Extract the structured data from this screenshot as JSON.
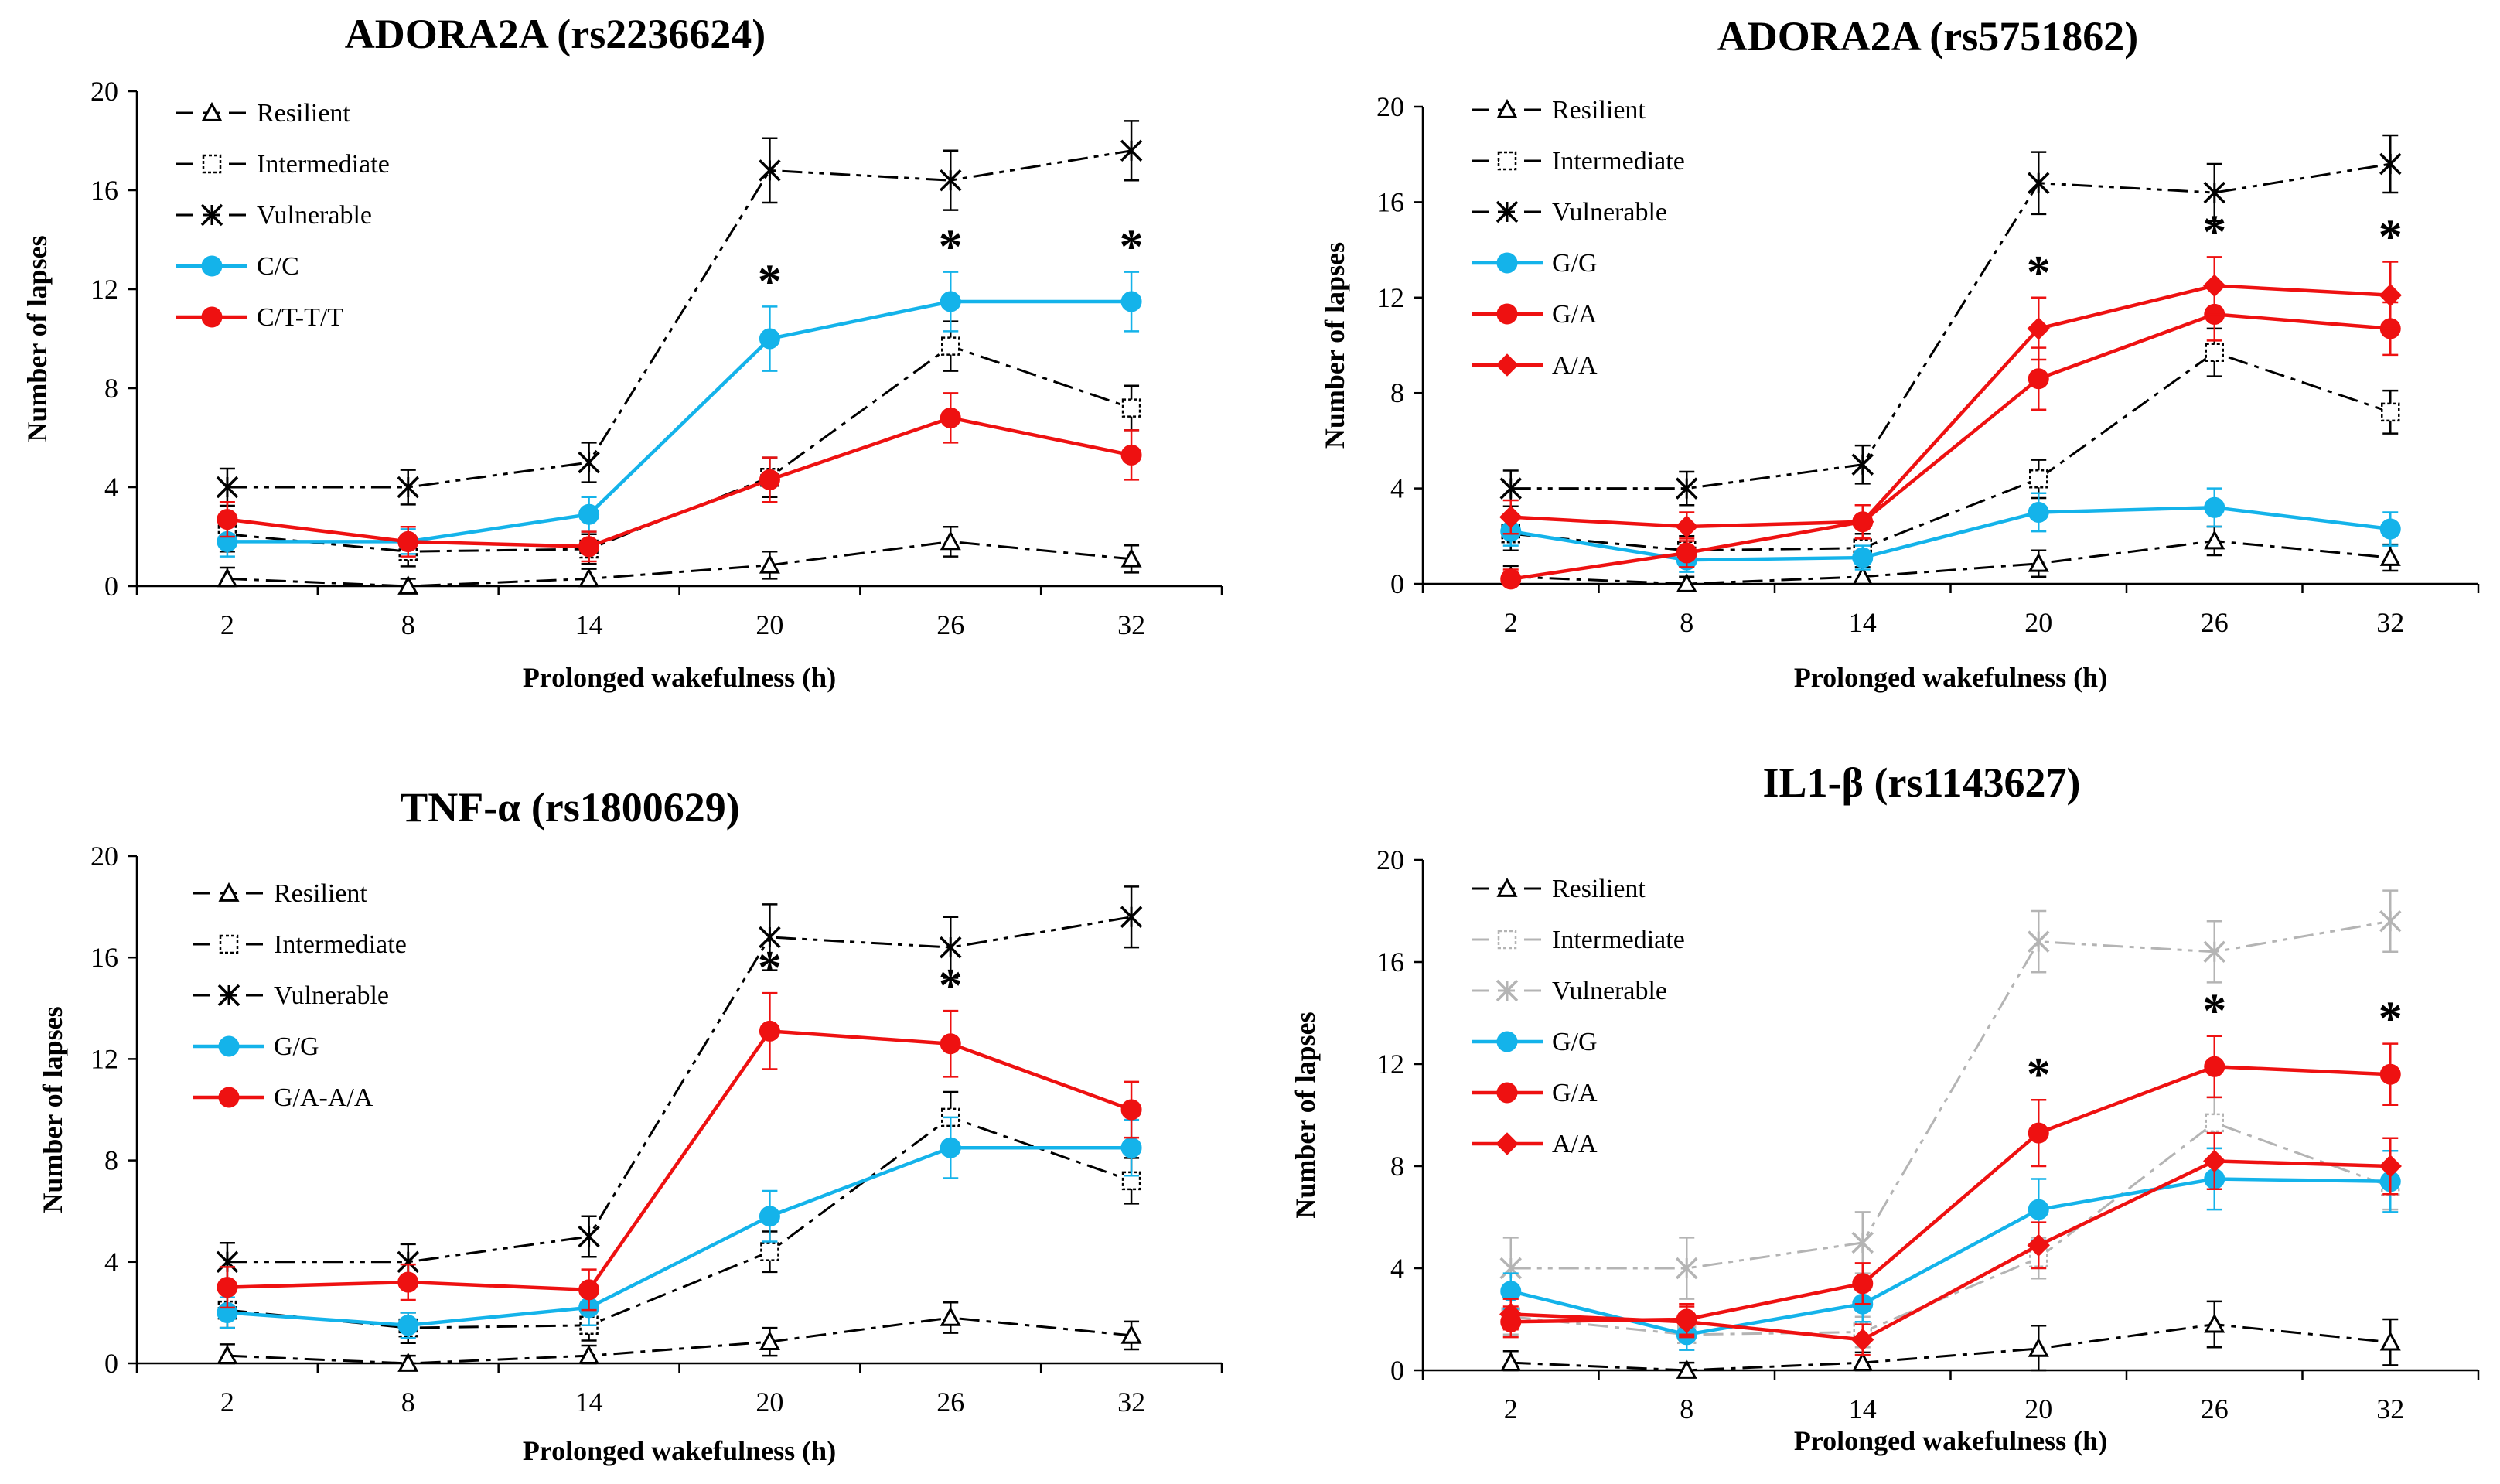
{
  "chart_data": [
    {
      "type": "line",
      "title": "ADORA2A (rs2236624)",
      "xlabel": "Prolonged wakefulness (h)",
      "ylabel": "Number of lapses",
      "categories": [
        "2",
        "8",
        "14",
        "20",
        "26",
        "32"
      ],
      "yticks": [
        "0",
        "4",
        "8",
        "12",
        "16",
        "20"
      ],
      "ylim": [
        0,
        20
      ],
      "significance": [
        null,
        null,
        null,
        "*",
        "*",
        "*"
      ],
      "series": [
        {
          "name": "Resilient",
          "color": "#000000",
          "dash": "dashdot",
          "marker": "triangle",
          "values": [
            0.3,
            0.0,
            0.3,
            0.85,
            1.8,
            1.1
          ],
          "err": [
            0.45,
            0.3,
            0.4,
            0.55,
            0.6,
            0.55
          ]
        },
        {
          "name": "Intermediate",
          "color": "#000000",
          "dash": "dashdot",
          "marker": "square",
          "values": [
            2.1,
            1.4,
            1.5,
            4.4,
            9.7,
            7.2
          ],
          "err": [
            0.7,
            0.6,
            0.6,
            0.8,
            1.0,
            0.9
          ]
        },
        {
          "name": "Vulnerable",
          "color": "#000000",
          "dash": "dashdotdot",
          "marker": "star",
          "values": [
            4.0,
            4.0,
            5.0,
            16.8,
            16.4,
            17.6
          ],
          "err": [
            0.75,
            0.7,
            0.8,
            1.3,
            1.2,
            1.2
          ]
        },
        {
          "name": "C/C",
          "color": "#14b3ea",
          "dash": "solid",
          "marker": "circle",
          "values": [
            1.8,
            1.8,
            2.9,
            10.0,
            11.5,
            11.5
          ],
          "err": [
            0.6,
            0.5,
            0.7,
            1.3,
            1.2,
            1.2
          ]
        },
        {
          "name": "C/T-T/T",
          "color": "#ee1111",
          "dash": "solid",
          "marker": "circle",
          "values": [
            2.7,
            1.8,
            1.6,
            4.3,
            6.8,
            5.3
          ],
          "err": [
            0.7,
            0.6,
            0.6,
            0.9,
            1.0,
            1.0
          ]
        }
      ]
    },
    {
      "type": "line",
      "title": "ADORA2A (rs5751862)",
      "xlabel": "Prolonged wakefulness (h)",
      "ylabel": "Number of lapses",
      "categories": [
        "2",
        "8",
        "14",
        "20",
        "26",
        "32"
      ],
      "yticks": [
        "0",
        "4",
        "8",
        "12",
        "16",
        "20"
      ],
      "ylim": [
        0,
        20
      ],
      "significance": [
        null,
        null,
        null,
        "*",
        "*",
        "*"
      ],
      "series": [
        {
          "name": "Resilient",
          "color": "#000000",
          "dash": "dashdot",
          "marker": "triangle",
          "values": [
            0.3,
            0.0,
            0.3,
            0.85,
            1.8,
            1.1
          ],
          "err": [
            0.45,
            0.3,
            0.4,
            0.55,
            0.6,
            0.55
          ]
        },
        {
          "name": "Intermediate",
          "color": "#000000",
          "dash": "dashdot",
          "marker": "square",
          "values": [
            2.1,
            1.4,
            1.5,
            4.4,
            9.7,
            7.2
          ],
          "err": [
            0.7,
            0.6,
            0.6,
            0.8,
            1.0,
            0.9
          ]
        },
        {
          "name": "Vulnerable",
          "color": "#000000",
          "dash": "dashdotdot",
          "marker": "star",
          "values": [
            4.0,
            4.0,
            5.0,
            16.8,
            16.4,
            17.6
          ],
          "err": [
            0.75,
            0.7,
            0.8,
            1.3,
            1.2,
            1.2
          ]
        },
        {
          "name": "G/G",
          "color": "#14b3ea",
          "dash": "solid",
          "marker": "circle",
          "values": [
            2.2,
            1.0,
            1.1,
            3.0,
            3.2,
            2.3
          ],
          "err": [
            0.6,
            0.5,
            0.5,
            0.8,
            0.8,
            0.7
          ]
        },
        {
          "name": "G/A",
          "color": "#ee1111",
          "dash": "solid",
          "marker": "circle",
          "values": [
            0.2,
            1.3,
            2.6,
            8.6,
            11.3,
            10.7
          ],
          "err": [
            0.4,
            0.6,
            0.7,
            1.3,
            1.1,
            1.1
          ]
        },
        {
          "name": "A/A",
          "color": "#ee1111",
          "dash": "solid",
          "marker": "diamond",
          "values": [
            2.8,
            2.4,
            2.6,
            10.7,
            12.5,
            12.1
          ],
          "err": [
            0.7,
            0.6,
            0.7,
            1.3,
            1.2,
            1.4
          ]
        }
      ]
    },
    {
      "type": "line",
      "title": "TNF-α (rs1800629)",
      "xlabel": "Prolonged wakefulness (h)",
      "ylabel": "Number of lapses",
      "categories": [
        "2",
        "8",
        "14",
        "20",
        "26",
        "32"
      ],
      "yticks": [
        "0",
        "4",
        "8",
        "12",
        "16",
        "20"
      ],
      "ylim": [
        0,
        20
      ],
      "significance": [
        null,
        null,
        null,
        "*",
        "*",
        null
      ],
      "series": [
        {
          "name": "Resilient",
          "color": "#000000",
          "dash": "dashdot",
          "marker": "triangle",
          "values": [
            0.3,
            0.0,
            0.3,
            0.85,
            1.8,
            1.1
          ],
          "err": [
            0.45,
            0.3,
            0.4,
            0.55,
            0.6,
            0.55
          ]
        },
        {
          "name": "Intermediate",
          "color": "#000000",
          "dash": "dashdot",
          "marker": "square",
          "values": [
            2.1,
            1.4,
            1.5,
            4.4,
            9.7,
            7.2
          ],
          "err": [
            0.7,
            0.6,
            0.6,
            0.8,
            1.0,
            0.9
          ]
        },
        {
          "name": "Vulnerable",
          "color": "#000000",
          "dash": "dashdotdot",
          "marker": "star",
          "values": [
            4.0,
            4.0,
            5.0,
            16.8,
            16.4,
            17.6
          ],
          "err": [
            0.75,
            0.7,
            0.8,
            1.3,
            1.2,
            1.2
          ]
        },
        {
          "name": "G/G",
          "color": "#14b3ea",
          "dash": "solid",
          "marker": "circle",
          "values": [
            2.0,
            1.5,
            2.2,
            5.8,
            8.5,
            8.5
          ],
          "err": [
            0.6,
            0.5,
            0.7,
            1.0,
            1.2,
            1.1
          ]
        },
        {
          "name": "G/A-A/A",
          "color": "#ee1111",
          "dash": "solid",
          "marker": "circle",
          "values": [
            3.0,
            3.2,
            2.9,
            13.1,
            12.6,
            10.0
          ],
          "err": [
            0.8,
            0.7,
            0.8,
            1.5,
            1.3,
            1.1
          ]
        }
      ]
    },
    {
      "type": "line",
      "title": "IL1-β (rs1143627)",
      "xlabel": "Prolonged wakefulness (h)",
      "ylabel": "Number of lapses",
      "categories": [
        "2",
        "8",
        "14",
        "20",
        "26",
        "32"
      ],
      "yticks": [
        "0",
        "4",
        "8",
        "12",
        "16",
        "20"
      ],
      "ylim": [
        0,
        20
      ],
      "significance": [
        null,
        null,
        null,
        "*",
        "*",
        "*"
      ],
      "series": [
        {
          "name": "Resilient",
          "color": "#000000",
          "dash": "dashdot",
          "marker": "triangle",
          "values": [
            0.3,
            0.0,
            0.3,
            0.85,
            1.8,
            1.1
          ],
          "err": [
            0.45,
            0.3,
            0.4,
            0.9,
            0.9,
            0.9
          ]
        },
        {
          "name": "Intermediate",
          "color": "#b4b4b4",
          "dash": "dashdot",
          "marker": "square",
          "values": [
            2.1,
            1.4,
            1.5,
            4.4,
            9.7,
            7.2
          ],
          "err": [
            0.7,
            0.6,
            0.6,
            0.8,
            1.0,
            0.9
          ]
        },
        {
          "name": "Vulnerable",
          "color": "#b4b4b4",
          "dash": "dashdotdot",
          "marker": "star",
          "values": [
            4.0,
            4.0,
            5.0,
            16.8,
            16.4,
            17.6
          ],
          "err": [
            1.2,
            1.2,
            1.2,
            1.2,
            1.2,
            1.2
          ]
        },
        {
          "name": "G/G",
          "color": "#14b3ea",
          "dash": "solid",
          "marker": "circle",
          "values": [
            3.1,
            1.4,
            2.6,
            6.3,
            7.5,
            7.4
          ],
          "err": [
            0.7,
            0.6,
            0.7,
            1.2,
            1.2,
            1.2
          ]
        },
        {
          "name": "G/A",
          "color": "#ee1111",
          "dash": "solid",
          "marker": "circle",
          "values": [
            1.9,
            2.0,
            3.4,
            9.3,
            11.9,
            11.6
          ],
          "err": [
            0.6,
            0.6,
            0.8,
            1.3,
            1.2,
            1.2
          ]
        },
        {
          "name": "A/A",
          "color": "#ee1111",
          "dash": "solid",
          "marker": "diamond",
          "values": [
            2.2,
            1.9,
            1.2,
            4.9,
            8.2,
            8.0
          ],
          "err": [
            0.6,
            0.6,
            0.6,
            0.9,
            1.1,
            1.1
          ]
        }
      ]
    }
  ]
}
